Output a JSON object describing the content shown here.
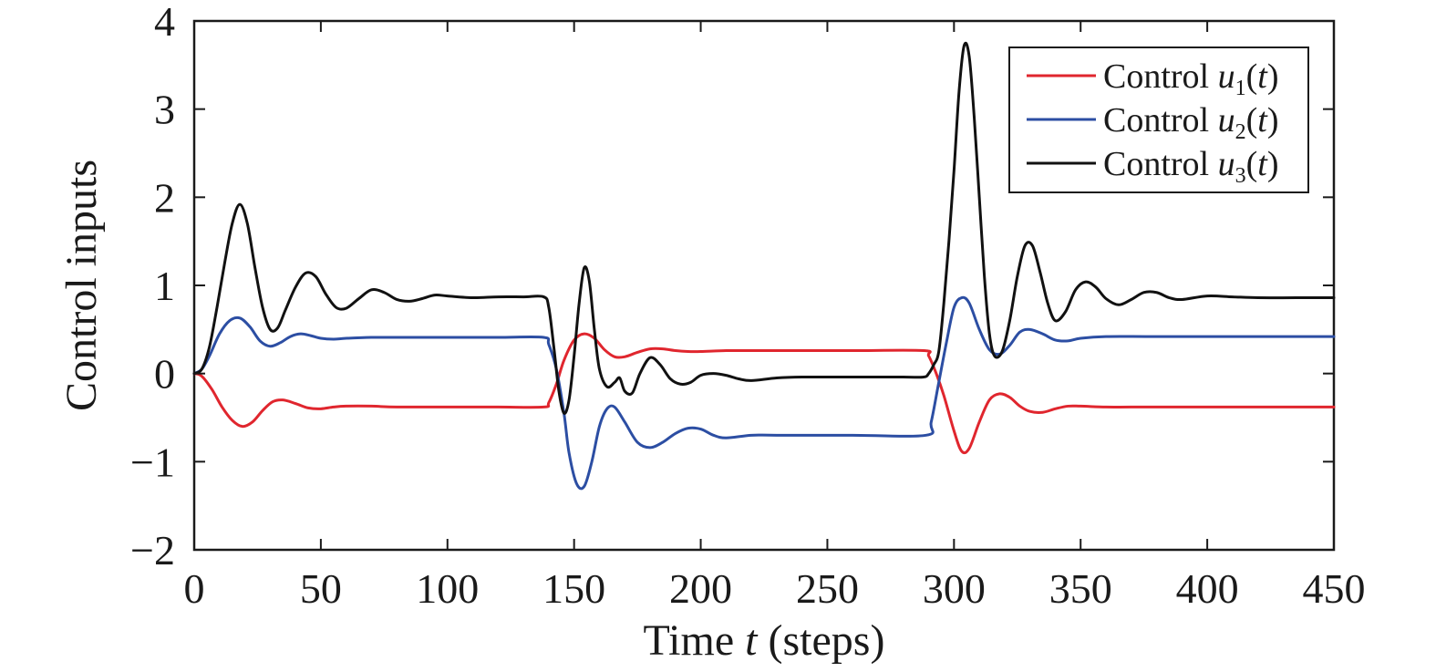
{
  "chart_data": {
    "type": "line",
    "xlabel": "Time t (steps)",
    "ylabel": "Control inputs",
    "xlim": [
      0,
      450
    ],
    "ylim": [
      -2,
      4
    ],
    "xticks": [
      0,
      50,
      100,
      150,
      200,
      250,
      300,
      350,
      400,
      450
    ],
    "xtick_labels": [
      "0",
      "50",
      "100",
      "150",
      "200",
      "250",
      "300",
      "350",
      "400",
      "450"
    ],
    "yticks": [
      -2,
      -1,
      0,
      1,
      2,
      3,
      4
    ],
    "ytick_labels": [
      "−2",
      "−1",
      "0",
      "1",
      "2",
      "3",
      "4"
    ],
    "grid": false,
    "legend": {
      "position": "top-right",
      "entries": [
        {
          "prefix": "Control",
          "var": "u",
          "sub": "1",
          "suffix": "(t)"
        },
        {
          "prefix": "Control",
          "var": "u",
          "sub": "2",
          "suffix": "(t)"
        },
        {
          "prefix": "Control",
          "var": "u",
          "sub": "3",
          "suffix": "(t)"
        }
      ]
    },
    "series": [
      {
        "name": "Control u1(t)",
        "color": "#e0262e",
        "x": [
          0,
          3,
          7,
          11,
          15,
          19,
          23,
          27,
          31,
          35,
          40,
          45,
          50,
          55,
          60,
          70,
          80,
          100,
          120,
          138,
          140,
          143,
          146,
          150,
          154,
          158,
          162,
          166,
          170,
          175,
          180,
          185,
          190,
          195,
          200,
          210,
          220,
          240,
          260,
          288,
          290,
          293,
          296,
          300,
          303,
          306,
          310,
          314,
          318,
          322,
          326,
          330,
          335,
          340,
          345,
          350,
          360,
          370,
          390,
          420,
          450
        ],
        "y": [
          0,
          -0.03,
          -0.18,
          -0.38,
          -0.53,
          -0.6,
          -0.55,
          -0.42,
          -0.32,
          -0.3,
          -0.34,
          -0.39,
          -0.4,
          -0.38,
          -0.37,
          -0.37,
          -0.38,
          -0.38,
          -0.38,
          -0.38,
          -0.33,
          -0.12,
          0.15,
          0.38,
          0.45,
          0.4,
          0.27,
          0.19,
          0.19,
          0.24,
          0.28,
          0.28,
          0.26,
          0.25,
          0.25,
          0.26,
          0.26,
          0.26,
          0.26,
          0.26,
          0.2,
          0.0,
          -0.25,
          -0.65,
          -0.88,
          -0.85,
          -0.55,
          -0.3,
          -0.23,
          -0.27,
          -0.37,
          -0.43,
          -0.44,
          -0.4,
          -0.37,
          -0.37,
          -0.38,
          -0.38,
          -0.38,
          -0.38,
          -0.38
        ]
      },
      {
        "name": "Control u2(t)",
        "color": "#2c4ea3",
        "x": [
          0,
          3,
          6,
          10,
          14,
          18,
          22,
          26,
          30,
          34,
          38,
          42,
          46,
          50,
          55,
          60,
          70,
          80,
          100,
          120,
          138,
          140,
          143,
          146,
          148,
          151,
          154,
          157,
          160,
          163,
          166,
          170,
          175,
          180,
          185,
          190,
          195,
          200,
          205,
          210,
          220,
          230,
          260,
          289,
          291,
          294,
          297,
          300,
          303,
          306,
          310,
          314,
          318,
          322,
          326,
          330,
          335,
          340,
          345,
          350,
          360,
          380,
          420,
          450
        ],
        "y": [
          0,
          0.05,
          0.2,
          0.45,
          0.6,
          0.63,
          0.53,
          0.37,
          0.31,
          0.35,
          0.42,
          0.45,
          0.43,
          0.4,
          0.39,
          0.4,
          0.41,
          0.41,
          0.41,
          0.41,
          0.41,
          0.33,
          0.05,
          -0.45,
          -0.9,
          -1.25,
          -1.28,
          -1.0,
          -0.6,
          -0.4,
          -0.38,
          -0.55,
          -0.78,
          -0.84,
          -0.78,
          -0.68,
          -0.62,
          -0.63,
          -0.7,
          -0.73,
          -0.7,
          -0.7,
          -0.7,
          -0.7,
          -0.55,
          -0.1,
          0.35,
          0.75,
          0.86,
          0.8,
          0.5,
          0.27,
          0.22,
          0.32,
          0.47,
          0.5,
          0.45,
          0.38,
          0.37,
          0.4,
          0.42,
          0.42,
          0.42,
          0.42
        ]
      },
      {
        "name": "Control u3(t)",
        "color": "#111111",
        "x": [
          0,
          3,
          6,
          9,
          12,
          15,
          18,
          21,
          24,
          27,
          30,
          33,
          36,
          40,
          44,
          48,
          52,
          56,
          60,
          65,
          70,
          75,
          80,
          85,
          90,
          95,
          100,
          110,
          120,
          130,
          138,
          140,
          142,
          144,
          146,
          148,
          150,
          152,
          154,
          156,
          158,
          160,
          163,
          166,
          168,
          170,
          173,
          176,
          180,
          184,
          188,
          192,
          196,
          200,
          205,
          210,
          215,
          220,
          230,
          240,
          260,
          280,
          288,
          290,
          292,
          294,
          296,
          298,
          300,
          302,
          304,
          306,
          308,
          310,
          312,
          314,
          316,
          319,
          322,
          325,
          328,
          331,
          334,
          337,
          340,
          344,
          348,
          352,
          356,
          360,
          365,
          370,
          375,
          380,
          385,
          390,
          400,
          410,
          420,
          435,
          450
        ],
        "y": [
          0,
          0.05,
          0.3,
          0.75,
          1.25,
          1.7,
          1.92,
          1.7,
          1.2,
          0.75,
          0.5,
          0.52,
          0.72,
          0.98,
          1.14,
          1.1,
          0.9,
          0.75,
          0.74,
          0.85,
          0.95,
          0.92,
          0.84,
          0.82,
          0.85,
          0.89,
          0.88,
          0.86,
          0.87,
          0.87,
          0.87,
          0.75,
          0.3,
          -0.2,
          -0.45,
          -0.3,
          0.2,
          0.8,
          1.2,
          1.05,
          0.5,
          0.05,
          -0.15,
          -0.1,
          -0.05,
          -0.2,
          -0.22,
          0.0,
          0.18,
          0.1,
          -0.06,
          -0.12,
          -0.1,
          -0.02,
          0.0,
          -0.02,
          -0.06,
          -0.08,
          -0.05,
          -0.04,
          -0.04,
          -0.04,
          -0.04,
          0.0,
          0.1,
          0.25,
          0.8,
          1.5,
          2.3,
          3.2,
          3.72,
          3.6,
          2.9,
          2.0,
          1.1,
          0.45,
          0.2,
          0.25,
          0.6,
          1.1,
          1.45,
          1.45,
          1.15,
          0.8,
          0.6,
          0.7,
          0.95,
          1.04,
          0.98,
          0.85,
          0.78,
          0.84,
          0.92,
          0.92,
          0.86,
          0.84,
          0.88,
          0.87,
          0.86,
          0.86,
          0.86
        ]
      }
    ]
  }
}
